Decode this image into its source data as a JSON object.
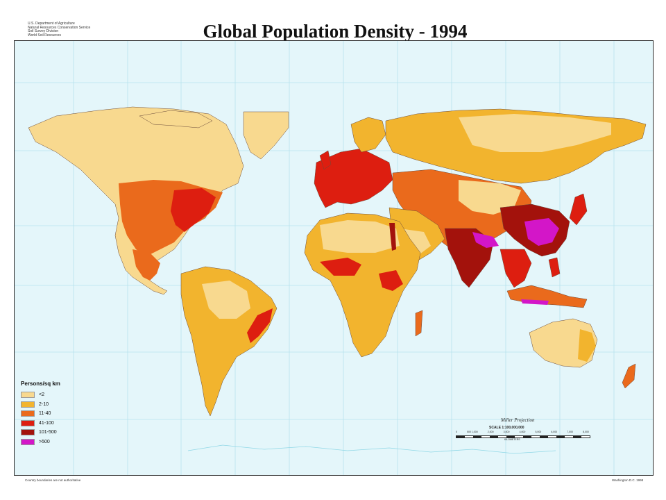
{
  "header": {
    "agency_lines": [
      "U.S. Department of Agriculture",
      "Natural Resources Conservation Service",
      "Soil Survey Division",
      "World Soil Resources"
    ],
    "title": "Global Population Density - 1994"
  },
  "map": {
    "ocean_color": "#e4f6fa",
    "graticule_color": "#b7e3ee",
    "border_color": "#6a4a3a"
  },
  "legend": {
    "title": "Persons/sq km",
    "classes": [
      {
        "label": "<2",
        "color": "#f8d98f"
      },
      {
        "label": "2-10",
        "color": "#f2b42e"
      },
      {
        "label": "11-40",
        "color": "#ea6a1c"
      },
      {
        "label": "41-100",
        "color": "#dd1e10"
      },
      {
        "label": "101-500",
        "color": "#a3120c"
      },
      {
        "label": ">500",
        "color": "#d316c8"
      }
    ]
  },
  "projection": {
    "name": "Miller Projection",
    "scale": "SCALE 1:100,000,000",
    "ticks": [
      "0",
      "500 1,000",
      "2,000",
      "3,000",
      "4,000",
      "5,000",
      "6,000",
      "7,000",
      "8,000"
    ],
    "unit": "KILOMETERS"
  },
  "footer": {
    "left": "Country boundaries are not authoritative",
    "right": "Washington D.C. 1998"
  }
}
